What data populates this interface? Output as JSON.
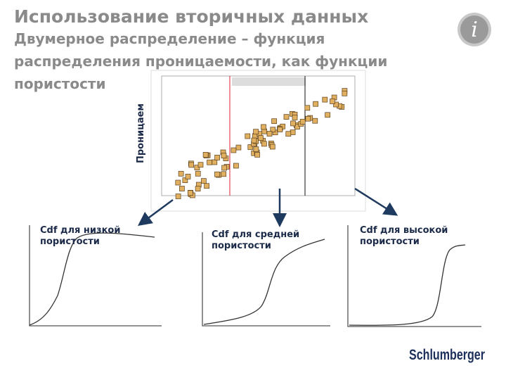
{
  "header": {
    "title": "Использование вторичных данных",
    "subtitle_lines": [
      "Двумерное распределение – функция",
      "распределения проницаемости, как функции",
      "пористости"
    ]
  },
  "figure": {
    "y_axis_label": "Проницаем"
  },
  "panels": [
    {
      "label_lines": [
        "Cdf для низкой",
        "пористости"
      ]
    },
    {
      "label_lines": [
        "Cdf для средней",
        "пористости"
      ]
    },
    {
      "label_lines": [
        "Cdf для высокой",
        "пористости"
      ]
    }
  ],
  "logo": "Schlumberger"
}
